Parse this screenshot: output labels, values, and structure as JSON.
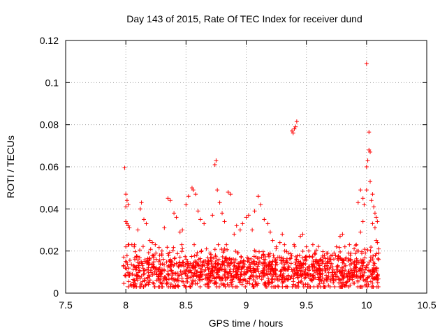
{
  "chart_data": {
    "type": "scatter",
    "title": "Day 143 of 2015, Rate Of TEC Index for receiver dund",
    "xlabel": "GPS time / hours",
    "ylabel": "ROTI / TECUs",
    "xlim": [
      7.5,
      10.5
    ],
    "ylim": [
      0,
      0.12
    ],
    "xticks": [
      7.5,
      8,
      8.5,
      9,
      9.5,
      10,
      10.5
    ],
    "xtick_labels": [
      "7.5",
      "8",
      "8.5",
      "9",
      "9.5",
      "10",
      "10.5"
    ],
    "yticks": [
      0,
      0.02,
      0.04,
      0.06,
      0.08,
      0.1,
      0.12
    ],
    "ytick_labels": [
      "0",
      "0.02",
      "0.04",
      "0.06",
      "0.08",
      "0.1",
      "0.12"
    ],
    "grid": true,
    "marker": "plus",
    "color": "#ff0000",
    "series": [
      {
        "name": "ROTI",
        "points": [
          [
            7.99,
            0.0595
          ],
          [
            8.0,
            0.047
          ],
          [
            8.01,
            0.044
          ],
          [
            8.0,
            0.041
          ],
          [
            8.02,
            0.042
          ],
          [
            8.0,
            0.034
          ],
          [
            8.01,
            0.033
          ],
          [
            8.02,
            0.032
          ],
          [
            8.03,
            0.031
          ],
          [
            8.0,
            0.022
          ],
          [
            8.02,
            0.023
          ],
          [
            8.05,
            0.023
          ],
          [
            8.07,
            0.022
          ],
          [
            8.1,
            0.03
          ],
          [
            8.12,
            0.04
          ],
          [
            8.13,
            0.043
          ],
          [
            8.15,
            0.035
          ],
          [
            8.17,
            0.033
          ],
          [
            8.2,
            0.025
          ],
          [
            8.22,
            0.024
          ],
          [
            8.25,
            0.019
          ],
          [
            8.28,
            0.018
          ],
          [
            8.3,
            0.02
          ],
          [
            8.32,
            0.031
          ],
          [
            8.35,
            0.045
          ],
          [
            8.37,
            0.044
          ],
          [
            8.4,
            0.038
          ],
          [
            8.42,
            0.036
          ],
          [
            8.45,
            0.029
          ],
          [
            8.47,
            0.03
          ],
          [
            8.5,
            0.042
          ],
          [
            8.52,
            0.046
          ],
          [
            8.55,
            0.05
          ],
          [
            8.56,
            0.049
          ],
          [
            8.58,
            0.047
          ],
          [
            8.6,
            0.039
          ],
          [
            8.62,
            0.035
          ],
          [
            8.65,
            0.033
          ],
          [
            8.67,
            0.021
          ],
          [
            8.7,
            0.019
          ],
          [
            8.72,
            0.037
          ],
          [
            8.74,
            0.061
          ],
          [
            8.75,
            0.063
          ],
          [
            8.76,
            0.049
          ],
          [
            8.78,
            0.043
          ],
          [
            8.8,
            0.038
          ],
          [
            8.82,
            0.034
          ],
          [
            8.85,
            0.048
          ],
          [
            8.87,
            0.047
          ],
          [
            8.9,
            0.028
          ],
          [
            8.92,
            0.032
          ],
          [
            8.95,
            0.03
          ],
          [
            8.97,
            0.033
          ],
          [
            9.0,
            0.036
          ],
          [
            9.02,
            0.037
          ],
          [
            9.05,
            0.03
          ],
          [
            9.07,
            0.039
          ],
          [
            9.1,
            0.046
          ],
          [
            9.12,
            0.042
          ],
          [
            9.15,
            0.035
          ],
          [
            9.18,
            0.033
          ],
          [
            9.2,
            0.029
          ],
          [
            9.22,
            0.025
          ],
          [
            9.25,
            0.022
          ],
          [
            9.28,
            0.024
          ],
          [
            9.3,
            0.028
          ],
          [
            9.32,
            0.02
          ],
          [
            9.35,
            0.019
          ],
          [
            9.38,
            0.077
          ],
          [
            9.39,
            0.076
          ],
          [
            9.4,
            0.078
          ],
          [
            9.41,
            0.079
          ],
          [
            9.42,
            0.0815
          ],
          [
            9.45,
            0.027
          ],
          [
            9.47,
            0.028
          ],
          [
            9.5,
            0.022
          ],
          [
            9.52,
            0.02
          ],
          [
            9.55,
            0.017
          ],
          [
            9.58,
            0.016
          ],
          [
            9.6,
            0.015
          ],
          [
            9.63,
            0.014
          ],
          [
            9.65,
            0.018
          ],
          [
            9.68,
            0.015
          ],
          [
            9.7,
            0.016
          ],
          [
            9.73,
            0.019
          ],
          [
            9.75,
            0.022
          ],
          [
            9.78,
            0.027
          ],
          [
            9.8,
            0.028
          ],
          [
            9.82,
            0.022
          ],
          [
            9.85,
            0.019
          ],
          [
            9.87,
            0.016
          ],
          [
            9.9,
            0.015
          ],
          [
            9.92,
            0.02
          ],
          [
            9.95,
            0.029
          ],
          [
            9.97,
            0.034
          ],
          [
            9.93,
            0.043
          ],
          [
            9.95,
            0.049
          ],
          [
            9.97,
            0.045
          ],
          [
            9.98,
            0.042
          ],
          [
            10.0,
            0.049
          ],
          [
            10.0,
            0.06
          ],
          [
            10.01,
            0.063
          ],
          [
            10.02,
            0.068
          ],
          [
            10.03,
            0.067
          ],
          [
            10.0,
            0.109
          ],
          [
            10.02,
            0.0765
          ],
          [
            10.03,
            0.053
          ],
          [
            10.04,
            0.044
          ],
          [
            10.05,
            0.047
          ],
          [
            10.06,
            0.041
          ],
          [
            10.07,
            0.038
          ],
          [
            10.08,
            0.036
          ],
          [
            10.09,
            0.034
          ],
          [
            10.05,
            0.033
          ],
          [
            10.07,
            0.031
          ],
          [
            10.08,
            0.025
          ],
          [
            10.09,
            0.024
          ],
          [
            10.1,
            0.021
          ],
          [
            10.1,
            0.019
          ],
          [
            10.1,
            0.016
          ]
        ],
        "dense_band": {
          "x_range": [
            7.98,
            10.1
          ],
          "y_range": [
            0.003,
            0.02
          ],
          "typical_y": 0.01
        }
      }
    ]
  }
}
